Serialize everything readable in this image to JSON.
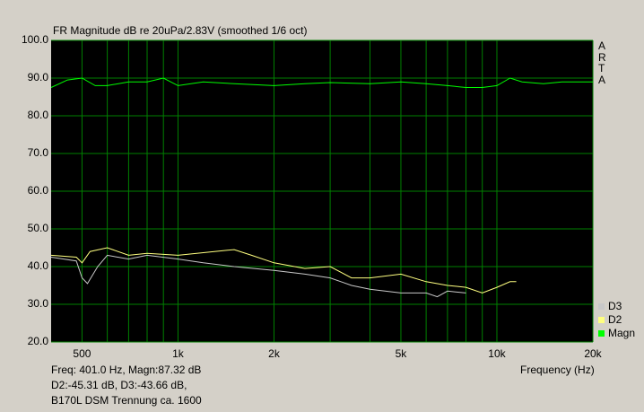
{
  "chart_data": {
    "type": "line",
    "title": "FR Magnitude dB re 20uPa/2.83V (smoothed 1/6 oct)",
    "side_label": "ARTA",
    "xlabel": "Frequency (Hz)",
    "info": [
      "Freq: 401.0 Hz, Magn:87.32 dB",
      "D2:-45.31 dB, D3:-43.66 dB,",
      "B170L DSM Trennung ca. 1600"
    ],
    "log_x": true,
    "grid": true,
    "xlim": [
      400,
      20000
    ],
    "ylim": [
      20,
      100
    ],
    "xticks": [
      500,
      {
        "value": 1000,
        "label": "1k"
      },
      {
        "value": 2000,
        "label": "2k"
      },
      {
        "value": 5000,
        "label": "5k"
      },
      {
        "value": 10000,
        "label": "10k"
      },
      {
        "value": 20000,
        "label": "20k"
      }
    ],
    "xgrid_minor": [
      600,
      700,
      800,
      900,
      3000,
      4000,
      6000,
      7000,
      8000,
      9000
    ],
    "yticks": [
      {
        "value": 20,
        "label": "20.0"
      },
      {
        "value": 30,
        "label": "30.0"
      },
      {
        "value": 40,
        "label": "40.0"
      },
      {
        "value": 50,
        "label": "50.0"
      },
      {
        "value": 60,
        "label": "60.0"
      },
      {
        "value": 70,
        "label": "70.0"
      },
      {
        "value": 80,
        "label": "80.0"
      },
      {
        "value": 90,
        "label": "90.0"
      },
      {
        "value": 100,
        "label": "100.0"
      }
    ],
    "legend_corner": "bottom-right",
    "series": [
      {
        "name": "D3",
        "color": "#c8c8c8",
        "x": [
          400,
          480,
          500,
          520,
          560,
          600,
          700,
          800,
          1000,
          1200,
          1500,
          2000,
          2500,
          3000,
          3500,
          4000,
          5000,
          6000,
          6500,
          7000,
          8000
        ],
        "values": [
          42.5,
          41.5,
          37,
          35.5,
          40,
          43,
          42,
          43,
          42,
          41,
          40,
          39,
          38,
          37,
          35,
          34,
          33,
          33,
          32,
          33.5,
          33
        ]
      },
      {
        "name": "D2",
        "color": "#ffff80",
        "x": [
          400,
          480,
          500,
          530,
          600,
          700,
          800,
          1000,
          1300,
          1500,
          1700,
          2000,
          2500,
          3000,
          3500,
          4000,
          5000,
          6000,
          7000,
          8000,
          9000,
          10000,
          11000,
          11500
        ],
        "values": [
          43,
          42.5,
          41,
          44,
          45,
          43,
          43.5,
          43,
          44,
          44.5,
          43,
          41,
          39.5,
          40,
          37,
          37,
          38,
          36,
          35,
          34.5,
          33,
          34.5,
          36,
          36
        ]
      },
      {
        "name": "Magn",
        "color": "#00ff00",
        "x": [
          400,
          450,
          500,
          550,
          600,
          700,
          800,
          900,
          1000,
          1200,
          1500,
          2000,
          2500,
          3000,
          4000,
          5000,
          6000,
          7000,
          8000,
          9000,
          10000,
          11000,
          12000,
          14000,
          16000,
          18000,
          20000
        ],
        "values": [
          87.5,
          89.5,
          90,
          88,
          88,
          89,
          89,
          90,
          88,
          89,
          88.5,
          88,
          88.5,
          88.8,
          88.5,
          89,
          88.5,
          88,
          87.5,
          87.5,
          88,
          90,
          89,
          88.5,
          89,
          89,
          89
        ]
      }
    ]
  }
}
